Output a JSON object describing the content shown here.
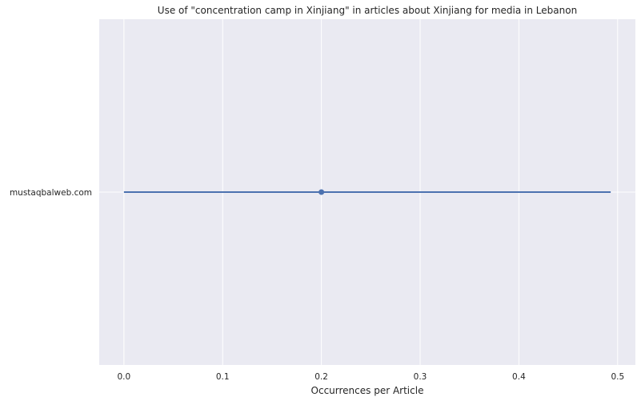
{
  "chart_data": {
    "type": "scatter",
    "title": "Use of \"concentration camp in Xinjiang\" in articles about Xinjiang for media in Lebanon",
    "xlabel": "Occurrences per Article",
    "ylabel": "",
    "categories": [
      "mustaqbalweb.com"
    ],
    "points": [
      {
        "category": "mustaqbalweb.com",
        "value": 0.2,
        "ci_low": 0.0,
        "ci_high": 0.493
      }
    ],
    "xlim": [
      -0.025,
      0.518
    ],
    "xticks": [
      0.0,
      0.1,
      0.2,
      0.3,
      0.4,
      0.5
    ],
    "xtick_labels": [
      "0.0",
      "0.1",
      "0.2",
      "0.3",
      "0.4",
      "0.5"
    ],
    "grid": true,
    "colors": {
      "background": "#eaeaf2",
      "grid": "#ffffff",
      "series": "#4c72b0"
    }
  }
}
